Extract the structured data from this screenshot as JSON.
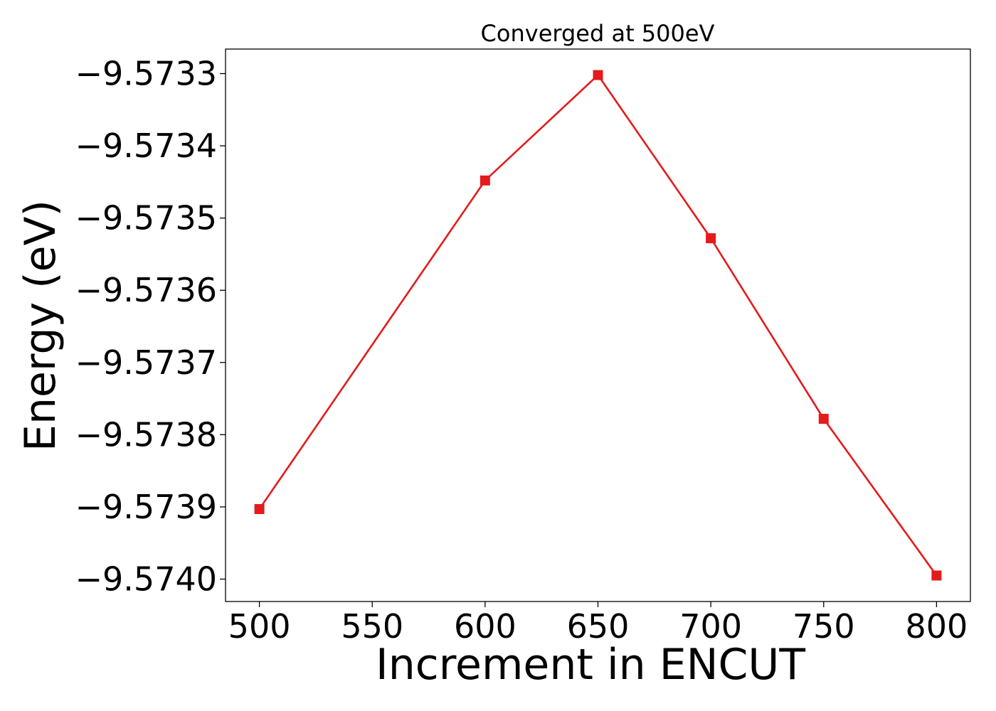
{
  "chart_data": {
    "type": "line",
    "title": "Converged at 500eV",
    "xlabel": "Increment in ENCUT",
    "ylabel": "Energy (eV)",
    "x": [
      500,
      600,
      650,
      700,
      750,
      800
    ],
    "series": [
      {
        "values": [
          -9.573903,
          -9.573448,
          -9.573302,
          -9.573528,
          -9.573778,
          -9.573995
        ],
        "color": "#e41a1c",
        "marker": "square"
      }
    ],
    "xlim": [
      485,
      815
    ],
    "ylim": [
      -9.574031,
      -9.573266
    ],
    "xticks": [
      500,
      550,
      600,
      650,
      700,
      750,
      800
    ],
    "xtick_labels": [
      "500",
      "550",
      "600",
      "650",
      "700",
      "750",
      "800"
    ],
    "yticks": [
      -9.5733,
      -9.5734,
      -9.5735,
      -9.5736,
      -9.5737,
      -9.5738,
      -9.5739,
      -9.574
    ],
    "ytick_labels": [
      "−9.5733",
      "−9.5734",
      "−9.5735",
      "−9.5736",
      "−9.5737",
      "−9.5738",
      "−9.5739",
      "−9.5740"
    ],
    "grid": false,
    "legend": "none"
  }
}
